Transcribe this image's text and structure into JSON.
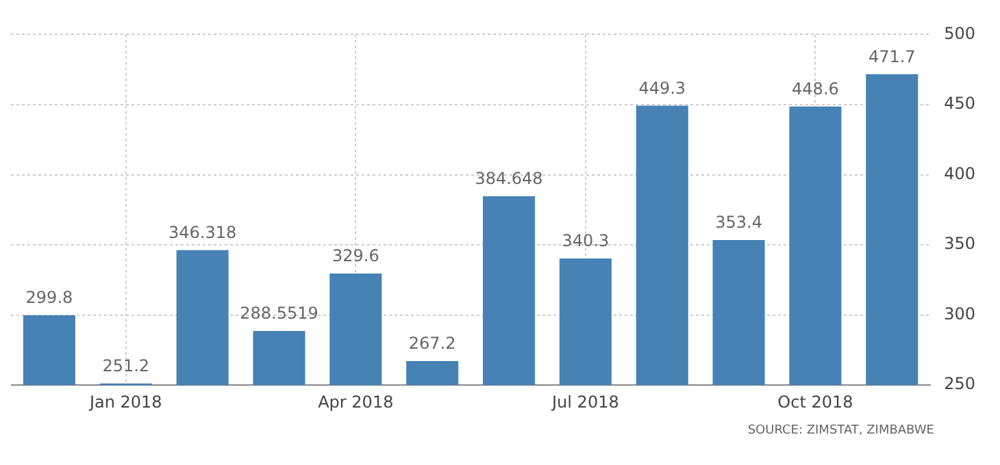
{
  "chart_data": {
    "type": "bar",
    "categories": [
      null,
      "Jan 2018",
      null,
      null,
      "Apr 2018",
      null,
      null,
      "Jul 2018",
      null,
      null,
      "Oct 2018",
      null
    ],
    "values": [
      299.8,
      251.2,
      346.318,
      288.5519,
      329.6,
      267.2,
      384.648,
      340.3,
      449.3,
      353.4,
      448.6,
      471.7
    ],
    "color": "#4682b4",
    "ylim": [
      250,
      500
    ],
    "yticks": [
      250,
      300,
      350,
      400,
      450,
      500
    ],
    "grid": true,
    "data_labels": true,
    "annotations": [
      "SOURCE: ZIMSTAT, ZIMBABWE"
    ]
  }
}
